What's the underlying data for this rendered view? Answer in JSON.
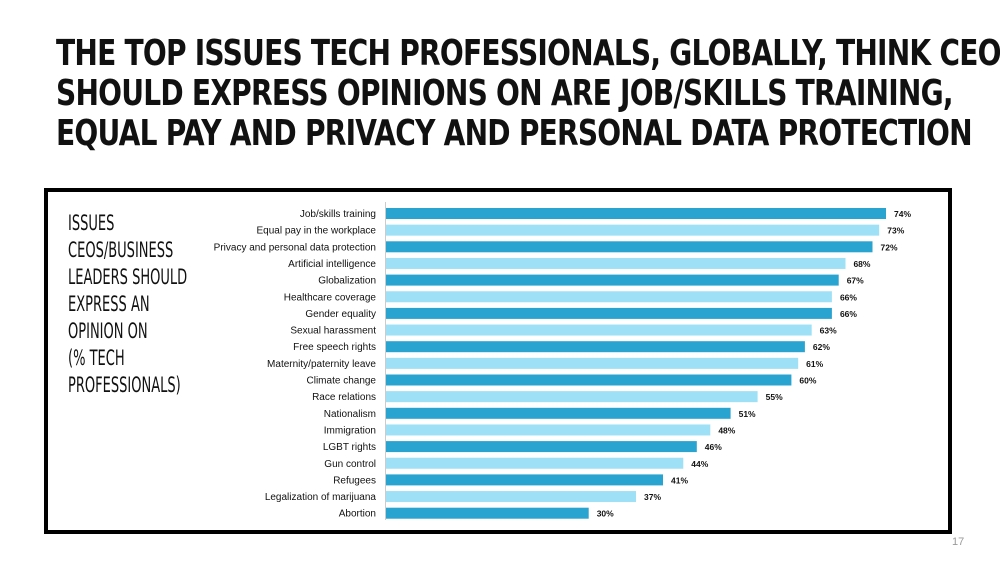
{
  "title_lines": [
    "THE TOP ISSUES TECH PROFESSIONALS, GLOBALLY, THINK CEOs",
    "SHOULD EXPRESS OPINIONS ON ARE JOB/SKILLS TRAINING,",
    "EQUAL PAY AND PRIVACY AND PERSONAL DATA PROTECTION"
  ],
  "side_label_lines": [
    "ISSUES",
    "CEOs/BUSINESS",
    "LEADERS SHOULD",
    "EXPRESS AN",
    "OPINION ON",
    "(% TECH",
    "PROFESSIONALS)"
  ],
  "page_number": "17",
  "colors": {
    "bar_dark": "#29a3cf",
    "bar_light": "#9ee0f5",
    "border": "#000000"
  },
  "chart_data": {
    "type": "bar",
    "orientation": "horizontal",
    "categories": [
      "Job/skills training",
      "Equal pay in the workplace",
      "Privacy and personal data protection",
      "Artificial intelligence",
      "Globalization",
      "Healthcare coverage",
      "Gender equality",
      "Sexual harassment",
      "Free speech rights",
      "Maternity/paternity leave",
      "Climate change",
      "Race relations",
      "Nationalism",
      "Immigration",
      "LGBT rights",
      "Gun control",
      "Refugees",
      "Legalization of marijuana",
      "Abortion"
    ],
    "values": [
      74,
      73,
      72,
      68,
      67,
      66,
      66,
      63,
      62,
      61,
      60,
      55,
      51,
      48,
      46,
      44,
      41,
      37,
      30
    ],
    "value_labels": [
      "74%",
      "73%",
      "72%",
      "68%",
      "67%",
      "66%",
      "66%",
      "63%",
      "62%",
      "61%",
      "60%",
      "55%",
      "51%",
      "48%",
      "46%",
      "44%",
      "41%",
      "37%",
      "30%"
    ],
    "xlim": [
      0,
      100
    ],
    "title": "",
    "xlabel": "",
    "ylabel": ""
  }
}
